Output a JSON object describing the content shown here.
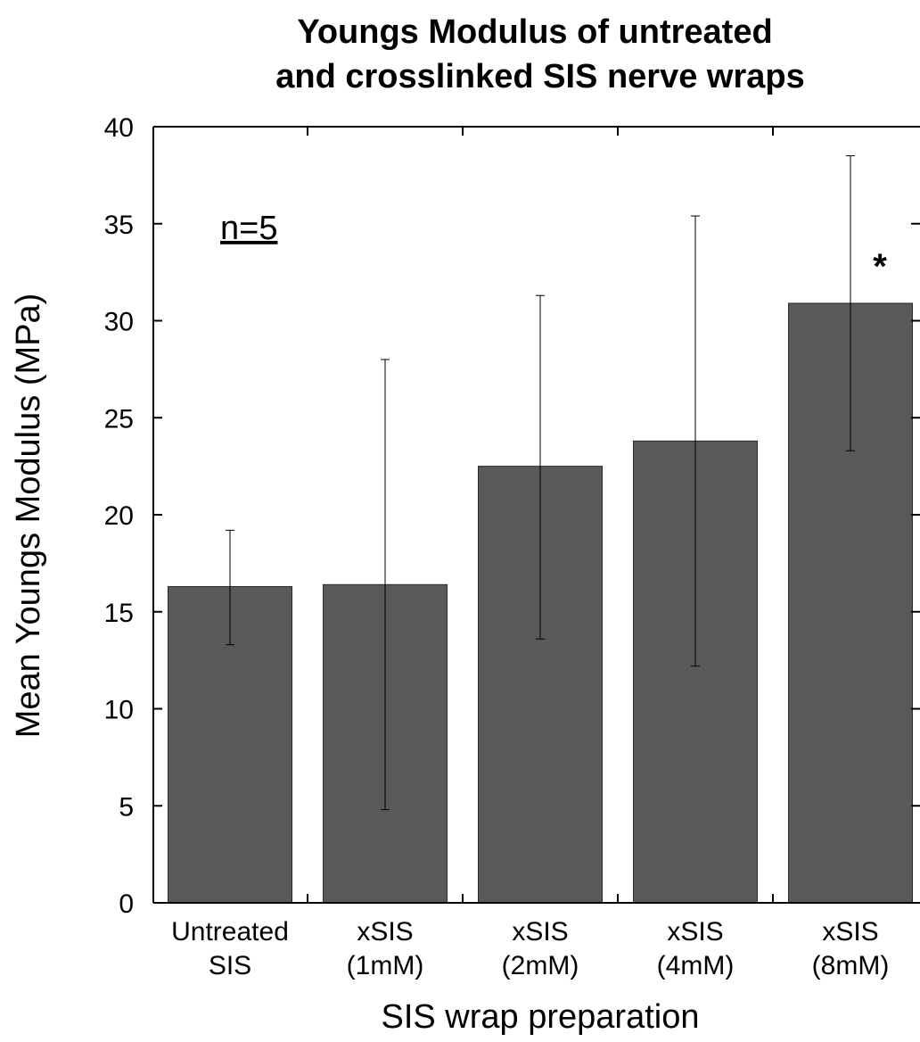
{
  "chart_data": {
    "type": "bar",
    "title_lines": [
      "Youngs Modulus of untreated",
      "and crosslinked SIS nerve wraps"
    ],
    "xlabel": "SIS wrap preparation",
    "ylabel": "Mean Youngs Modulus (MPa)",
    "ylim": [
      0,
      40
    ],
    "yticks": [
      0,
      5,
      10,
      15,
      20,
      25,
      30,
      35,
      40
    ],
    "categories": [
      {
        "line1": "Untreated",
        "line2": "SIS"
      },
      {
        "line1": "xSIS",
        "line2": "(1mM)"
      },
      {
        "line1": "xSIS",
        "line2": "(2mM)"
      },
      {
        "line1": "xSIS",
        "line2": "(4mM)"
      },
      {
        "line1": "xSIS",
        "line2": "(8mM)"
      }
    ],
    "values": [
      16.3,
      16.4,
      22.5,
      23.8,
      30.9
    ],
    "error_low": [
      13.3,
      4.8,
      13.6,
      12.2,
      23.3
    ],
    "error_high": [
      19.2,
      28.0,
      31.3,
      35.4,
      38.5
    ],
    "annotations": {
      "n_label": "n=5",
      "significance": "*"
    },
    "grid": false,
    "legend": "none",
    "bar_color": "#58595b"
  }
}
